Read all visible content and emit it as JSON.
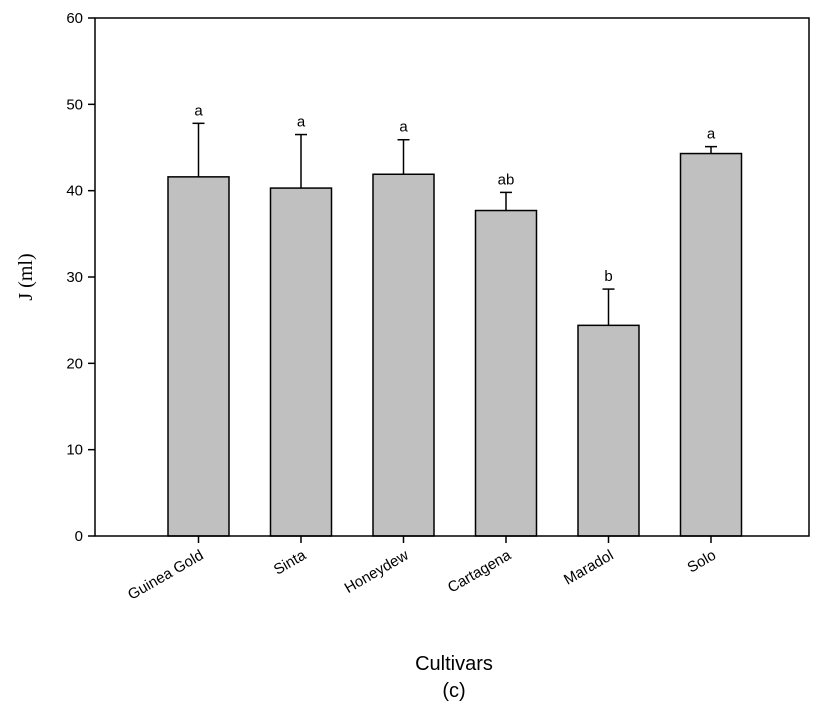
{
  "chart_data": {
    "type": "bar",
    "categories": [
      "Guinea Gold",
      "Sinta",
      "Honeydew",
      "Cartagena",
      "Maradol",
      "Solo"
    ],
    "values": [
      41.6,
      40.3,
      41.9,
      37.7,
      24.4,
      44.3
    ],
    "errors": [
      6.2,
      6.2,
      4.0,
      2.1,
      4.2,
      0.8
    ],
    "significance_letters": [
      "a",
      "a",
      "a",
      "ab",
      "b",
      "a"
    ],
    "ylabel": "J (ml)",
    "xlabel": "Cultivars",
    "panel_label": "(c)",
    "ylim": [
      0,
      60
    ],
    "yticks": [
      0,
      10,
      20,
      30,
      40,
      50,
      60
    ],
    "bar_color": "#c0c0c0",
    "grid": false
  }
}
